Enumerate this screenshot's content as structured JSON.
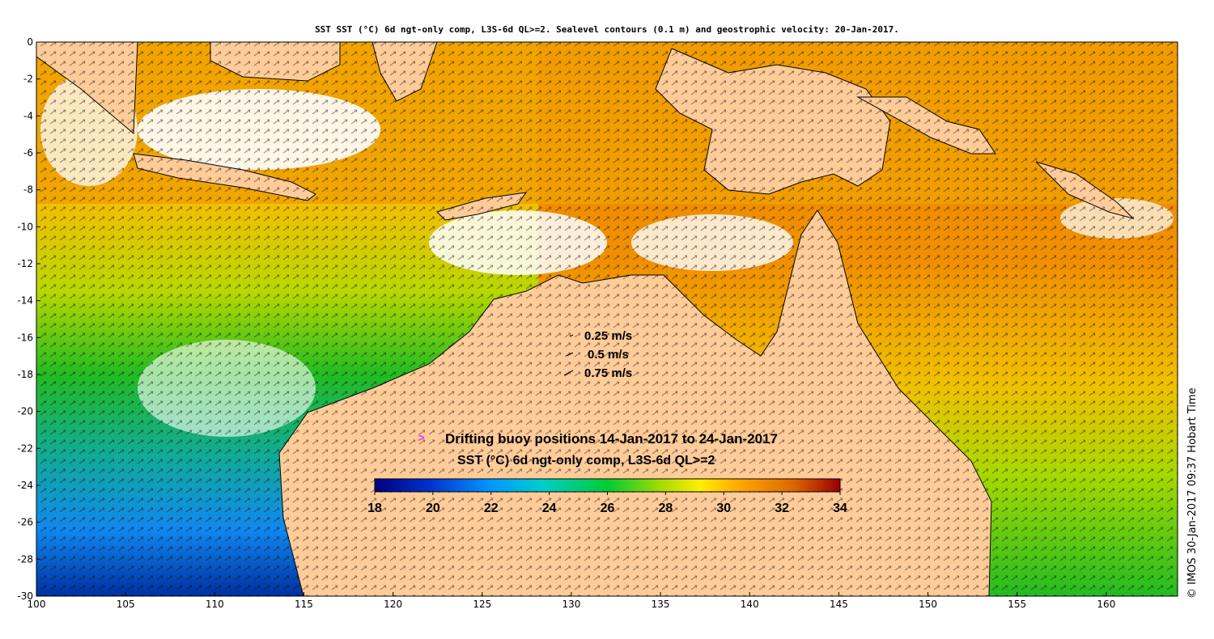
{
  "title": "SST SST (°C) 6d ngt-only comp, L3S-6d QL>=2. Sealevel contours (0.1 m) and geostrophic velocity: 20-Jan-2017.",
  "map": {
    "lon_range": [
      100,
      164
    ],
    "lat_range": [
      -30,
      0
    ],
    "x_ticks": [
      "100",
      "105",
      "110",
      "115",
      "120",
      "125",
      "130",
      "135",
      "140",
      "145",
      "150",
      "155",
      "160"
    ],
    "y_ticks": [
      "0",
      "-2",
      "-4",
      "-6",
      "-8",
      "-10",
      "-12",
      "-14",
      "-16",
      "-18",
      "-20",
      "-22",
      "-24",
      "-26",
      "-28",
      "-30"
    ],
    "land_color": "#ffcc99"
  },
  "velocity_legend": [
    "0.25 m/s",
    "0.5 m/s",
    "0.75 m/s"
  ],
  "buoy_legend": "Drifting buoy positions 14-Jan-2017 to 24-Jan-2017",
  "colorbar": {
    "title": "SST (°C) 6d ngt-only comp, L3S-6d QL>=2",
    "min": 18,
    "max": 34,
    "ticks": [
      "18",
      "20",
      "22",
      "24",
      "26",
      "28",
      "30",
      "32",
      "34"
    ]
  },
  "credit": "© IMOS 30-Jan-2017 09:37 Hobart Time"
}
